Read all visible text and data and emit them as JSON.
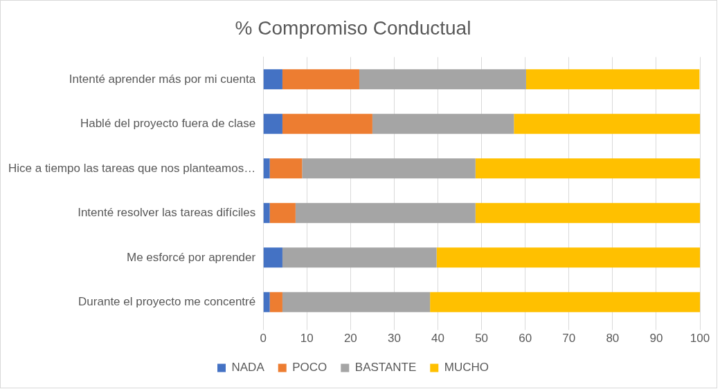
{
  "chart_data": {
    "type": "bar",
    "orientation": "horizontal",
    "stacked": true,
    "title": "% Compromiso Conductual",
    "categories": [
      "Intenté aprender más por mi cuenta",
      "Hablé del proyecto fuera de clase",
      "Hice a tiempo las tareas que nos planteamos…",
      "Intenté resolver las tareas difíciles",
      "Me esforcé por aprender",
      "Durante el proyecto me concentré"
    ],
    "series": [
      {
        "name": "NADA",
        "color": "#4472c4",
        "values": [
          4.4,
          4.4,
          1.5,
          1.5,
          4.4,
          1.5
        ]
      },
      {
        "name": "POCO",
        "color": "#ed7d31",
        "values": [
          17.6,
          20.6,
          7.4,
          5.9,
          0,
          2.9
        ]
      },
      {
        "name": "BASTANTE",
        "color": "#a5a5a5",
        "values": [
          38.2,
          32.4,
          39.7,
          41.2,
          35.3,
          33.8
        ]
      },
      {
        "name": "MUCHO",
        "color": "#ffc000",
        "values": [
          39.7,
          42.6,
          51.5,
          51.5,
          60.3,
          61.8
        ]
      }
    ],
    "xlim": [
      0,
      100
    ],
    "xticks": [
      0,
      10,
      20,
      30,
      40,
      50,
      60,
      70,
      80,
      90,
      100
    ],
    "grid": "x",
    "legend": "bottom"
  }
}
